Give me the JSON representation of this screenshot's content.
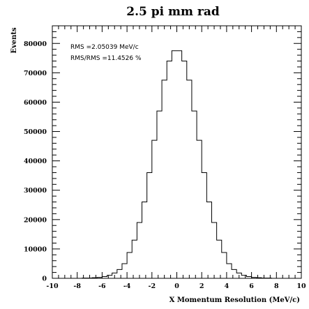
{
  "chart_data": {
    "type": "histogram",
    "title": "2.5 pi mm rad",
    "xlabel": "X Momentum Resolution (MeV/c)",
    "ylabel": "Events",
    "xlim": [
      -10,
      10
    ],
    "ylim": [
      0,
      86000
    ],
    "x_ticks": [
      -10,
      -8,
      -6,
      -4,
      -2,
      0,
      2,
      4,
      6,
      8,
      10
    ],
    "y_ticks": [
      0,
      10000,
      20000,
      30000,
      40000,
      50000,
      60000,
      70000,
      80000
    ],
    "stats": [
      "RMS =2.05039  MeV/c",
      "RMS/RMS =11.4526 %"
    ],
    "bin_width": 0.4,
    "bin_edges_start": -10,
    "values": [
      0,
      0,
      0,
      0,
      0,
      0,
      100,
      100,
      200,
      300,
      600,
      1000,
      1800,
      3000,
      5000,
      8800,
      13000,
      19000,
      26000,
      36000,
      47000,
      57000,
      67500,
      74000,
      77500,
      77500,
      74000,
      67500,
      57000,
      47000,
      36000,
      26000,
      19000,
      13000,
      8800,
      5000,
      3000,
      1800,
      1000,
      600,
      300,
      200,
      100,
      100,
      0,
      0,
      0,
      0,
      0,
      0
    ]
  }
}
